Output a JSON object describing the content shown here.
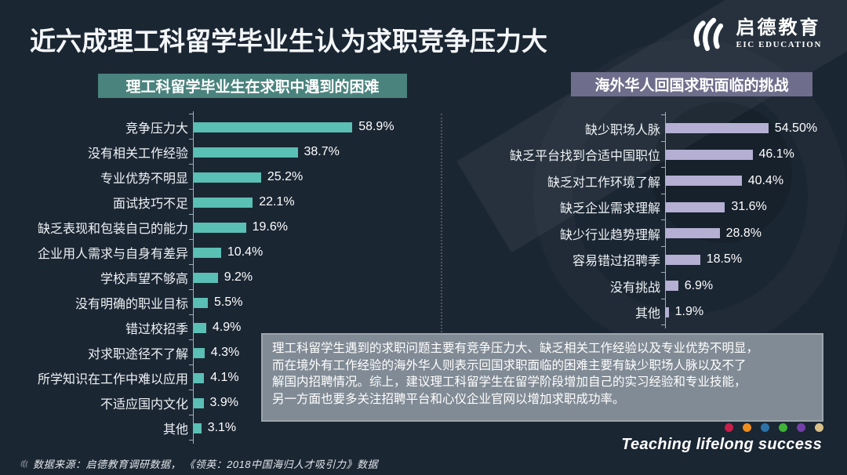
{
  "header": {
    "title": "近六成理工科留学毕业生认为求职竞争压力大"
  },
  "logo": {
    "cn": "启德教育",
    "en": "EIC EDUCATION"
  },
  "chart_data": [
    {
      "type": "bar",
      "orientation": "horizontal",
      "title": "理工科留学毕业生在求职中遇到的困难",
      "categories": [
        "竞争压力大",
        "没有相关工作经验",
        "专业优势不明显",
        "面试技巧不足",
        "缺乏表现和包装自己的能力",
        "企业用人需求与自身有差异",
        "学校声望不够高",
        "没有明确的职业目标",
        "错过校招季",
        "对求职途径不了解",
        "所学知识在工作中难以应用",
        "不适应国内文化",
        "其他"
      ],
      "values": [
        58.9,
        38.7,
        25.2,
        22.1,
        19.6,
        10.4,
        9.2,
        5.5,
        4.9,
        4.3,
        4.1,
        3.9,
        3.1
      ],
      "value_labels": [
        "58.9%",
        "38.7%",
        "25.2%",
        "22.1%",
        "19.6%",
        "10.4%",
        "9.2%",
        "5.5%",
        "4.9%",
        "4.3%",
        "4.1%",
        "3.9%",
        "3.1%"
      ],
      "xlim": [
        0,
        60
      ],
      "bar_color": "#5abfb4",
      "header_color": "#4a837d",
      "grid": false,
      "legend": "none"
    },
    {
      "type": "bar",
      "orientation": "horizontal",
      "title": "海外华人回国求职面临的挑战",
      "categories": [
        "缺少职场人脉",
        "缺乏平台找到合适中国职位",
        "缺乏对工作环境了解",
        "缺乏企业需求理解",
        "缺少行业趋势理解",
        "容易错过招聘季",
        "没有挑战",
        "其他"
      ],
      "values": [
        54.5,
        46.1,
        40.4,
        31.6,
        28.8,
        18.5,
        6.9,
        1.9
      ],
      "value_labels": [
        "54.50%",
        "46.1%",
        "40.4%",
        "31.6%",
        "28.8%",
        "18.5%",
        "6.9%",
        "1.9%"
      ],
      "xlim": [
        0,
        55
      ],
      "bar_color": "#b4afd3",
      "header_color": "#6e6d8b",
      "grid": false,
      "legend": "none"
    }
  ],
  "summary": {
    "text": "理工科留学生遇到的求职问题主要有竞争压力大、缺乏相关工作经验以及专业优势不明显，\n而在境外有工作经验的海外华人则表示回国求职面临的困难主要有缺少职场人脉以及不了\n解国内招聘情况。综上，建议理工科留学生在留学阶段增加自己的实习经验和专业技能，\n另一方面也要多关注招聘平台和心仪企业官网以增加求职成功率。"
  },
  "footer": {
    "source": "数据来源：启德教育调研数据， 《领英：2018中国海归人才吸引力》数据",
    "tagline": "Teaching lifelong success",
    "dots": [
      "#c81e4a",
      "#ee8d1e",
      "#2d72a9",
      "#3fb437",
      "#7440a8",
      "#d9c18a"
    ]
  },
  "colors": {
    "background": "#1b2633",
    "left_bar": "#5abfb4",
    "right_bar": "#b4afd3",
    "summary_box": "#818b95"
  }
}
